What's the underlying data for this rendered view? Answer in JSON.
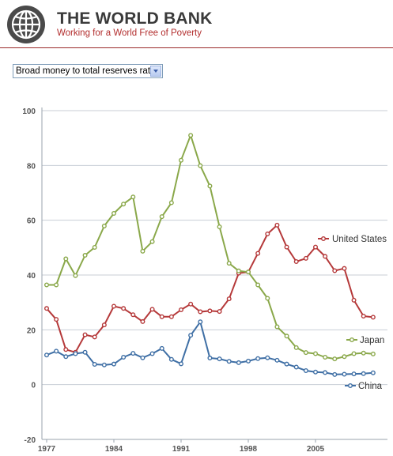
{
  "header": {
    "title": "THE WORLD BANK",
    "tagline": "Working for a World Free of Poverty",
    "logo_icon": "globe-logo-icon"
  },
  "selector": {
    "value": "Broad money to total reserves ratio",
    "icon": "chevron-down-icon"
  },
  "colors": {
    "brand_red": "#b22d2d",
    "united_states": "#b5393a",
    "japan": "#8aa84a",
    "china": "#3f6fa5"
  },
  "chart_data": {
    "type": "line",
    "x": [
      1977,
      1978,
      1979,
      1980,
      1981,
      1982,
      1983,
      1984,
      1985,
      1986,
      1987,
      1988,
      1989,
      1990,
      1991,
      1992,
      1993,
      1994,
      1995,
      1996,
      1997,
      1998,
      1999,
      2000,
      2001,
      2002,
      2003,
      2004,
      2005,
      2006,
      2007,
      2008,
      2009,
      2010,
      2011,
      2012
    ],
    "xticks": [
      "1977",
      "1984",
      "1991",
      "1998",
      "2005"
    ],
    "yticks": [
      "100",
      "80",
      "60",
      "40",
      "20",
      "0",
      "-20"
    ],
    "ylim": [
      -20,
      100
    ],
    "grid": true,
    "legend": "inline at line ends",
    "series": [
      {
        "name": "United States",
        "values": [
          27.8,
          23.8,
          12.8,
          11.8,
          18.2,
          17.4,
          21.8,
          28.6,
          27.8,
          25.5,
          23.0,
          27.5,
          24.8,
          24.8,
          27.3,
          29.4,
          26.6,
          26.9,
          26.7,
          31.3,
          40.7,
          41.1,
          47.9,
          55.0,
          58.2,
          50.2,
          44.9,
          46.1,
          50.2,
          46.8,
          41.6,
          42.4,
          30.8,
          25.0,
          24.6,
          null
        ]
      },
      {
        "name": "Japan",
        "values": [
          36.4,
          36.4,
          45.9,
          39.8,
          47.2,
          50.1,
          57.9,
          62.5,
          65.9,
          68.5,
          48.7,
          52.2,
          61.3,
          66.4,
          81.9,
          91.0,
          79.9,
          72.5,
          57.6,
          44.3,
          41.5,
          41.1,
          36.4,
          31.5,
          21.1,
          17.7,
          13.5,
          11.7,
          11.3,
          10.0,
          9.4,
          10.2,
          11.3,
          11.5,
          11.2,
          null
        ]
      },
      {
        "name": "China",
        "values": [
          10.8,
          12.2,
          10.2,
          11.3,
          11.8,
          7.4,
          7.2,
          7.5,
          10.0,
          11.4,
          9.8,
          11.3,
          13.2,
          9.2,
          7.6,
          18.0,
          22.9,
          9.7,
          9.4,
          8.5,
          8.0,
          8.6,
          9.5,
          9.8,
          8.9,
          7.5,
          6.4,
          5.1,
          4.6,
          4.4,
          3.7,
          3.8,
          3.9,
          4.0,
          4.3,
          null
        ]
      }
    ]
  }
}
